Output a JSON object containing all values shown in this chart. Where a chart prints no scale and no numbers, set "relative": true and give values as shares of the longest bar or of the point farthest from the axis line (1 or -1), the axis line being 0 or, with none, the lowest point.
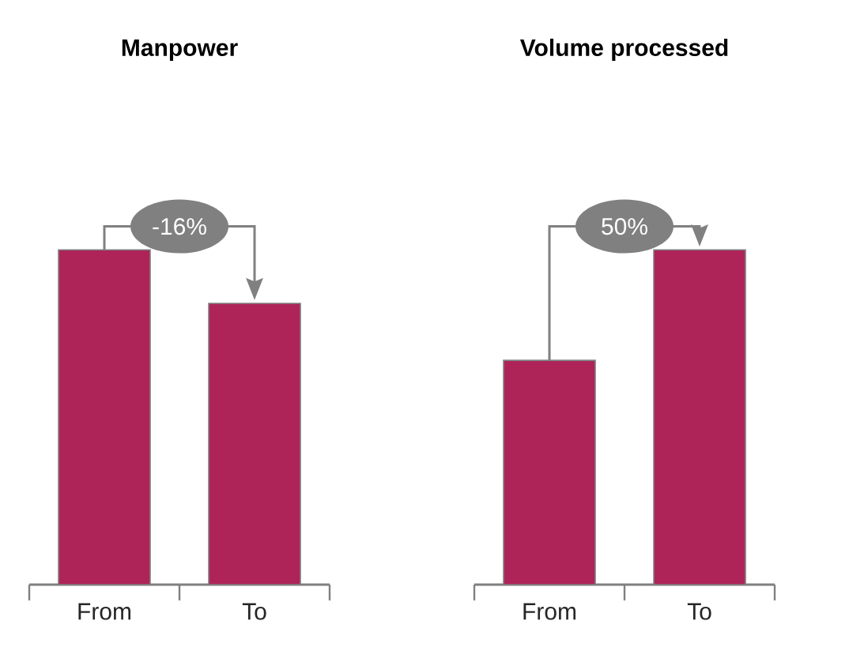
{
  "chart_data": [
    {
      "type": "bar",
      "title": "Manpower",
      "categories": [
        "From",
        "To"
      ],
      "values": [
        1,
        0.84
      ],
      "color": "#ae2459",
      "relative": true,
      "annotations": [
        "-16%"
      ]
    },
    {
      "type": "bar",
      "title": "Volume processed",
      "categories": [
        "From",
        "To"
      ],
      "values": [
        0.67,
        1
      ],
      "color": "#ae2459",
      "relative": true,
      "annotations": [
        "50%"
      ]
    }
  ]
}
